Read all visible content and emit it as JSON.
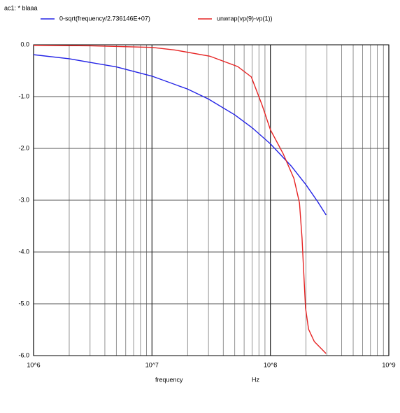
{
  "chart_data": {
    "type": "line",
    "title": "ac1: * blaaa",
    "xlabel": "frequency",
    "xunit": "Hz",
    "xscale": "log",
    "grid": true,
    "xlim": [
      1000000,
      1000000000
    ],
    "xticks": [
      {
        "value": 1000000,
        "label": "10^6"
      },
      {
        "value": 10000000,
        "label": "10^7"
      },
      {
        "value": 100000000,
        "label": "10^8"
      },
      {
        "value": 1000000000,
        "label": "10^9"
      }
    ],
    "ylim": [
      -6,
      0
    ],
    "yticks": [
      {
        "value": 0,
        "label": "0.0"
      },
      {
        "value": -1,
        "label": "-1.0"
      },
      {
        "value": -2,
        "label": "-2.0"
      },
      {
        "value": -3,
        "label": "-3.0"
      },
      {
        "value": -4,
        "label": "-4.0"
      },
      {
        "value": -5,
        "label": "-5.0"
      },
      {
        "value": -6,
        "label": "-6.0"
      }
    ],
    "series": [
      {
        "name": "0-sqrt(frequency/2.736146E+07)",
        "color": "#2323e6",
        "x": [
          1000000,
          2000000,
          5000000,
          10000000,
          20000000,
          30000000,
          50000000,
          70000000,
          100000000,
          150000000,
          200000000,
          250000000,
          295000000
        ],
        "values": [
          -0.191,
          -0.27,
          -0.427,
          -0.605,
          -0.855,
          -1.047,
          -1.352,
          -1.6,
          -1.912,
          -2.341,
          -2.704,
          -3.023,
          -3.284
        ]
      },
      {
        "name": "unwrap(vp(9)-vp(1))",
        "color": "#e62323",
        "x": [
          1000000,
          3000000,
          10000000,
          15600000,
          30800000,
          53000000,
          69000000,
          85000000,
          100000000,
          128000000,
          158000000,
          176000000,
          185000000,
          190000000,
          198000000,
          210000000,
          235000000,
          295000000
        ],
        "values": [
          -0.01,
          -0.02,
          -0.05,
          -0.1,
          -0.22,
          -0.42,
          -0.62,
          -1.16,
          -1.64,
          -2.1,
          -2.58,
          -3.05,
          -3.73,
          -4.27,
          -5.08,
          -5.49,
          -5.73,
          -5.96
        ]
      }
    ]
  }
}
